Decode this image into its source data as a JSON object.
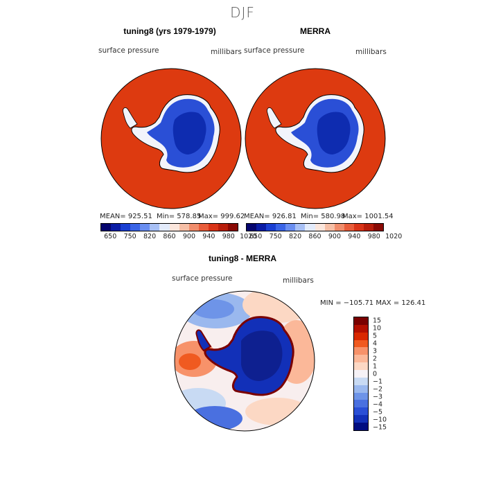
{
  "season": "DJF",
  "panels": {
    "model": {
      "title": "tuning8 (yrs 1979-1979)",
      "variable": "surface pressure",
      "units": "millibars",
      "mean_label": "MEAN= 925.51",
      "min_label": "Min= 578.85",
      "max_label": "Max= 999.62"
    },
    "obs": {
      "title": "MERRA",
      "variable": "surface pressure",
      "units": "millibars",
      "mean_label": "MEAN= 926.81",
      "min_label": "Min= 580.98",
      "max_label": "Max= 1001.54"
    },
    "diff": {
      "title": "tuning8 - MERRA",
      "variable": "surface pressure",
      "units": "millibars",
      "range_label": "MIN = −105.71 MAX = 126.41"
    }
  },
  "colorbar_abs": {
    "colors": [
      "#05056e",
      "#0a1ca5",
      "#1a3fd2",
      "#3a64e6",
      "#6a8ef0",
      "#a8c0f5",
      "#e3ebfb",
      "#fbe6dc",
      "#f6bfa6",
      "#f08d6c",
      "#e85d3b",
      "#d93418",
      "#b81e0c",
      "#8a0a05"
    ],
    "ticks": [
      "650",
      "750",
      "820",
      "860",
      "900",
      "940",
      "980",
      "1020"
    ]
  },
  "colorbar_diff": {
    "colors": [
      "#7a0000",
      "#b30f00",
      "#d92800",
      "#f05a20",
      "#f7926a",
      "#fbb899",
      "#fcd8c4",
      "#f6f2f6",
      "#c8daf3",
      "#9ab8ee",
      "#6e94e8",
      "#4a70e0",
      "#2a4fd6",
      "#1230b8",
      "#000d80"
    ],
    "ticks": [
      "15",
      "10",
      "5",
      "4",
      "3",
      "2",
      "1",
      "0",
      "−1",
      "−2",
      "−3",
      "−4",
      "−5",
      "−10",
      "−15"
    ]
  },
  "colors": {
    "ocean_high": "#dd3a10",
    "ice_low": "#0e2cb0",
    "coast": "#000000"
  }
}
